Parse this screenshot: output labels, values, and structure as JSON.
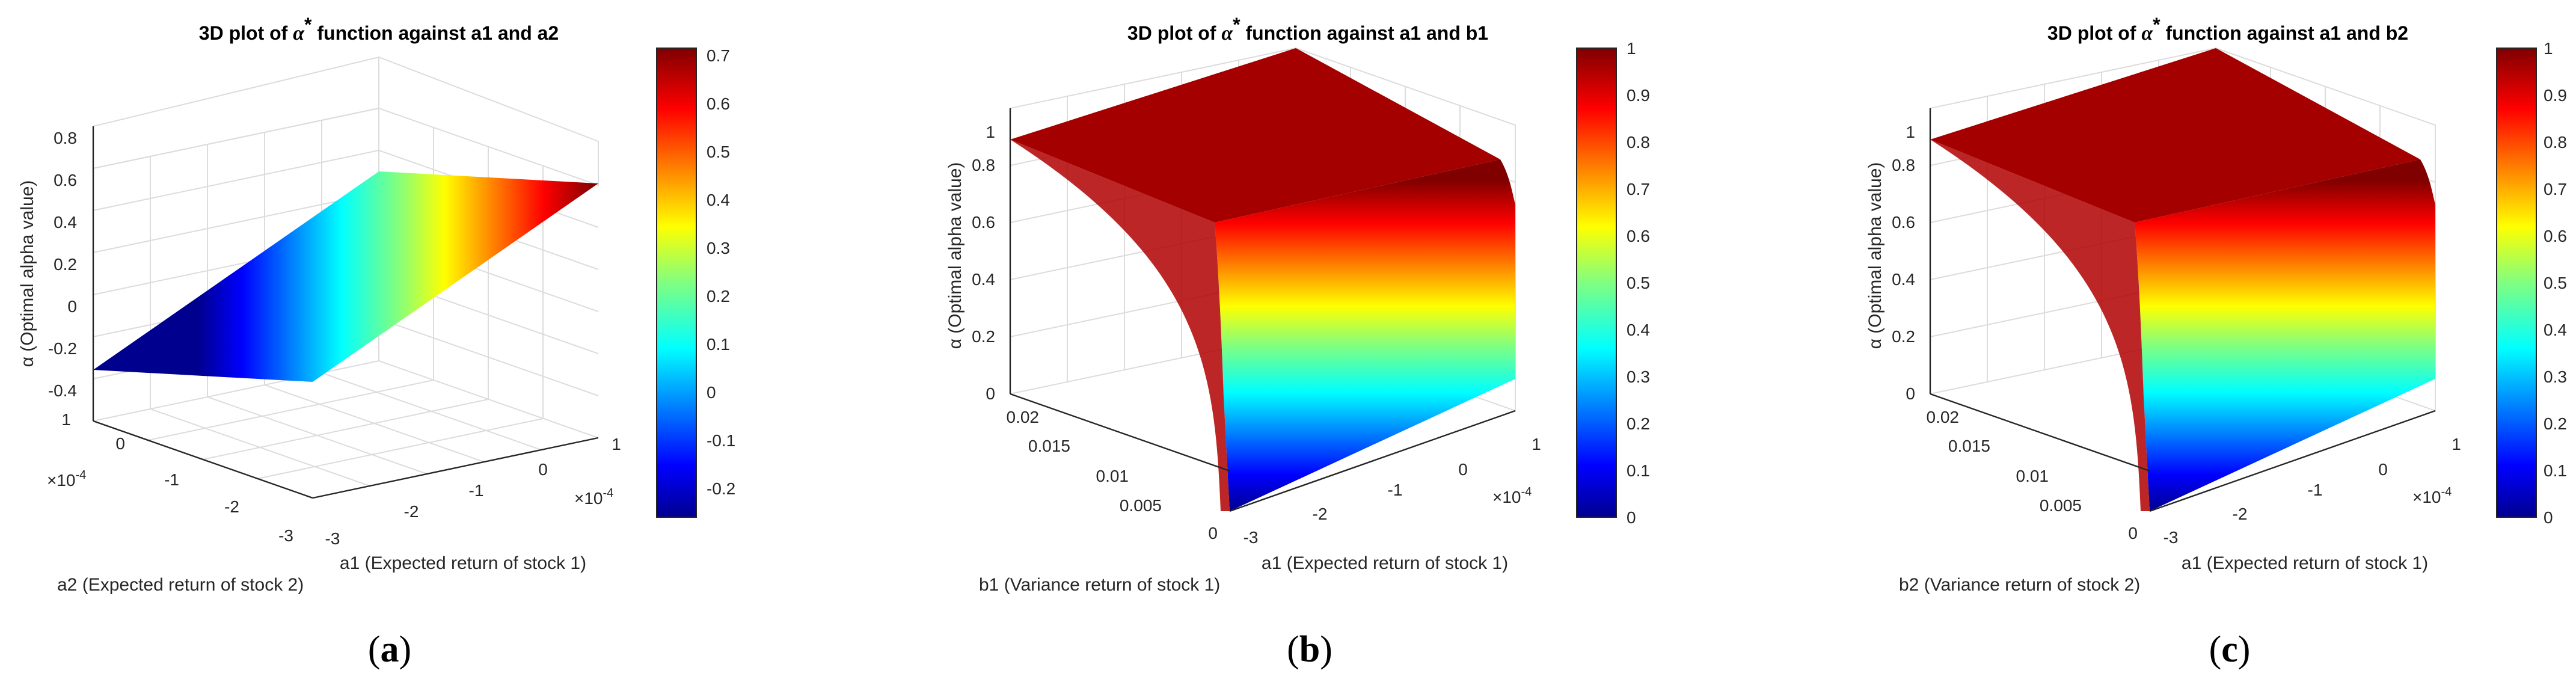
{
  "chart_data": [
    {
      "type": "surface",
      "panel_label": "a",
      "title": {
        "prefix": "3D plot of ",
        "symbol": "α",
        "sup": "*",
        "suffix": " function against a1 and a2"
      },
      "xlabel": "a1 (Expected return of stock 1)",
      "ylabel": "a2 (Expected return of stock 2)",
      "zlabel": "α (Optimal alpha value)",
      "x_ticks": [
        "-3",
        "-2",
        "-1",
        "0",
        "1"
      ],
      "x_multiplier": "×10",
      "x_exp": "-4",
      "y_ticks": [
        "-3",
        "-2",
        "-1",
        "0",
        "1"
      ],
      "y_multiplier": "×10",
      "y_exp": "-4",
      "z_ticks": [
        "-0.4",
        "-0.2",
        "0",
        "0.2",
        "0.4",
        "0.6",
        "0.8"
      ],
      "xlim": [
        -0.0003,
        0.0001
      ],
      "ylim": [
        -0.0003,
        0.0001
      ],
      "zlim": [
        -0.4,
        0.8
      ],
      "surface_corners": [
        {
          "x": -0.0003,
          "y": 0.0001,
          "z": -0.25
        },
        {
          "x": -0.0003,
          "y": -0.0003,
          "z": -0.28
        },
        {
          "x": 0.0001,
          "y": -0.0003,
          "z": 0.7
        },
        {
          "x": 0.0001,
          "y": 0.0001,
          "z": 0.7
        }
      ],
      "colorbar_ticks": [
        "-0.2",
        "-0.1",
        "0",
        "0.1",
        "0.2",
        "0.3",
        "0.4",
        "0.5",
        "0.6",
        "0.7"
      ],
      "colorbar_range": [
        -0.25,
        0.72
      ],
      "colormap": "jet",
      "grid": true
    },
    {
      "type": "surface",
      "panel_label": "b",
      "title": {
        "prefix": "3D plot of ",
        "symbol": "α",
        "sup": "*",
        "suffix": " function against a1 and b1"
      },
      "xlabel": "a1 (Expected return of stock 1)",
      "ylabel": "b1 (Variance return of stock 1)",
      "zlabel": "α (Optimal alpha value)",
      "x_ticks": [
        "-3",
        "-2",
        "-1",
        "0",
        "1"
      ],
      "x_multiplier": "×10",
      "x_exp": "-4",
      "y_ticks": [
        "0",
        "0.005",
        "0.01",
        "0.015",
        "0.02"
      ],
      "z_ticks": [
        "0",
        "0.2",
        "0.4",
        "0.6",
        "0.8",
        "1"
      ],
      "xlim": [
        -0.0003,
        0.0001
      ],
      "ylim": [
        0,
        0.02
      ],
      "zlim": [
        0,
        1
      ],
      "surface_profile": {
        "description": "alpha saturates near 1 for larger variance, falls to 0 as variance approaches 0",
        "b_values": [
          0,
          0.0005,
          0.001,
          0.002,
          0.004,
          0.008,
          0.012,
          0.016,
          0.02
        ],
        "alpha_values": [
          0,
          0.35,
          0.55,
          0.72,
          0.85,
          0.93,
          0.96,
          0.98,
          1
        ]
      },
      "colorbar_ticks": [
        "0",
        "0.1",
        "0.2",
        "0.3",
        "0.4",
        "0.5",
        "0.6",
        "0.7",
        "0.8",
        "0.9",
        "1"
      ],
      "colorbar_range": [
        0,
        1
      ],
      "colormap": "jet",
      "grid": true
    },
    {
      "type": "surface",
      "panel_label": "c",
      "title": {
        "prefix": "3D plot of ",
        "symbol": "α",
        "sup": "*",
        "suffix": " function against a1 and b2"
      },
      "xlabel": "a1 (Expected return of stock 1)",
      "ylabel": "b2 (Variance return of stock 2)",
      "zlabel": "α (Optimal alpha value)",
      "x_ticks": [
        "-3",
        "-2",
        "-1",
        "0",
        "1"
      ],
      "x_multiplier": "×10",
      "x_exp": "-4",
      "y_ticks": [
        "0",
        "0.005",
        "0.01",
        "0.015",
        "0.02"
      ],
      "z_ticks": [
        "0",
        "0.2",
        "0.4",
        "0.6",
        "0.8",
        "1"
      ],
      "xlim": [
        -0.0003,
        0.0001
      ],
      "ylim": [
        0,
        0.02
      ],
      "zlim": [
        0,
        1
      ],
      "surface_profile": {
        "description": "alpha saturates near 1 for larger variance, falls to 0 as variance approaches 0",
        "b_values": [
          0,
          0.0005,
          0.001,
          0.002,
          0.004,
          0.008,
          0.012,
          0.016,
          0.02
        ],
        "alpha_values": [
          0,
          0.35,
          0.55,
          0.72,
          0.85,
          0.93,
          0.96,
          0.98,
          1
        ]
      },
      "colorbar_ticks": [
        "0",
        "0.1",
        "0.2",
        "0.3",
        "0.4",
        "0.5",
        "0.6",
        "0.7",
        "0.8",
        "0.9",
        "1"
      ],
      "colorbar_range": [
        0,
        1
      ],
      "colormap": "jet",
      "grid": true
    }
  ]
}
